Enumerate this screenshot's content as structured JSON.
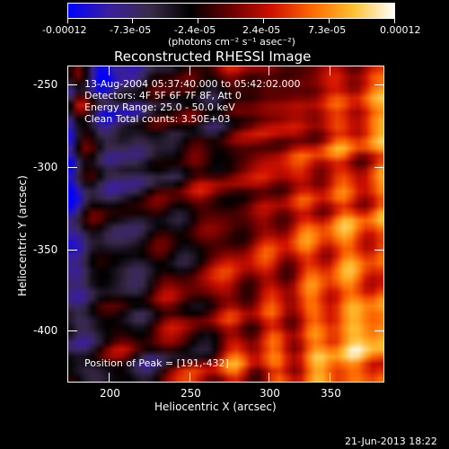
{
  "colorbar": {
    "tick_labels": [
      "-0.00012",
      "-7.3e-05",
      "-2.4e-05",
      "2.4e-05",
      "7.3e-05",
      "0.00012"
    ],
    "unit_label": "(photons cm⁻² s⁻¹ asec⁻²)",
    "colors": [
      "#0000ff",
      "#3a1f9e",
      "#3a2a4a",
      "#000000",
      "#6a0000",
      "#d01000",
      "#ff6a00",
      "#ffc030",
      "#ffffff"
    ]
  },
  "plot": {
    "title": "Reconstructed RHESSI Image",
    "info_lines": [
      "13-Aug-2004 05:37:40.000 to 05:42:02.000",
      "Detectors: 4F 5F 6F 7F 8F, Att 0",
      "Energy Range: 25.0 - 50.0 keV",
      "Clean     Total counts: 3.50E+03"
    ],
    "peak_text": "Position of Peak = [191,-432]",
    "xlabel": "Heliocentric X (arcsec)",
    "ylabel": "Heliocentric Y (arcsec)",
    "xticks": [
      "200",
      "250",
      "300",
      "350"
    ],
    "yticks": [
      "-250",
      "-300",
      "-350",
      "-400"
    ]
  },
  "chart_data": {
    "type": "heatmap",
    "title": "Reconstructed RHESSI Image",
    "xlabel": "Heliocentric X (arcsec)",
    "ylabel": "Heliocentric Y (arcsec)",
    "xlim": [
      174,
      367
    ],
    "ylim": [
      -432,
      -239
    ],
    "colorbar_range": [
      -0.00012,
      0.00012
    ],
    "peak": [
      191,
      -432
    ]
  },
  "footer": {
    "timestamp": "21-Jun-2013 18:22"
  }
}
